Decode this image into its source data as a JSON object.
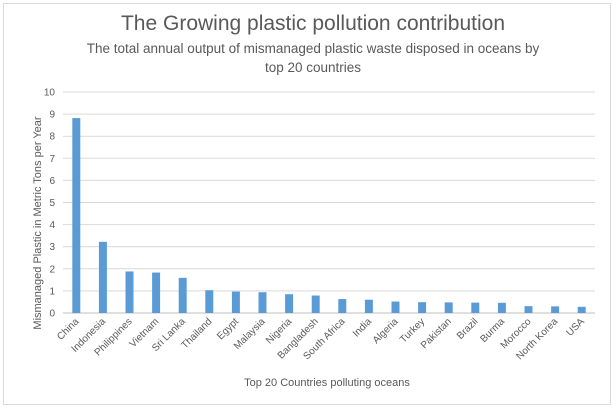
{
  "chart_data": {
    "type": "bar",
    "title": "The Growing plastic pollution contribution",
    "subtitle_line1": "The total annual output of mismanaged plastic waste disposed in oceans by",
    "subtitle_line2": "top 20 countries",
    "xlabel": "Top 20 Countries polluting oceans",
    "ylabel": "Mismanaged Plastic in Metric Tons per Year",
    "ylim": [
      0,
      10
    ],
    "yticks": [
      0,
      1,
      2,
      3,
      4,
      5,
      6,
      7,
      8,
      9,
      10
    ],
    "grid": true,
    "categories": [
      "China",
      "Indonesia",
      "Philippines",
      "Vietnam",
      "Sri Lanka",
      "Thailand",
      "Egypt",
      "Malaysia",
      "Nigeria",
      "Bangladesh",
      "South Africa",
      "India",
      "Algeria",
      "Turkey",
      "Pakistan",
      "Brazil",
      "Burma",
      "Morocco",
      "North Korea",
      "USA"
    ],
    "values": [
      8.82,
      3.22,
      1.88,
      1.83,
      1.59,
      1.03,
      0.97,
      0.94,
      0.85,
      0.79,
      0.63,
      0.6,
      0.52,
      0.49,
      0.48,
      0.47,
      0.46,
      0.31,
      0.3,
      0.28
    ],
    "bar_color": "#5b9bd5"
  }
}
